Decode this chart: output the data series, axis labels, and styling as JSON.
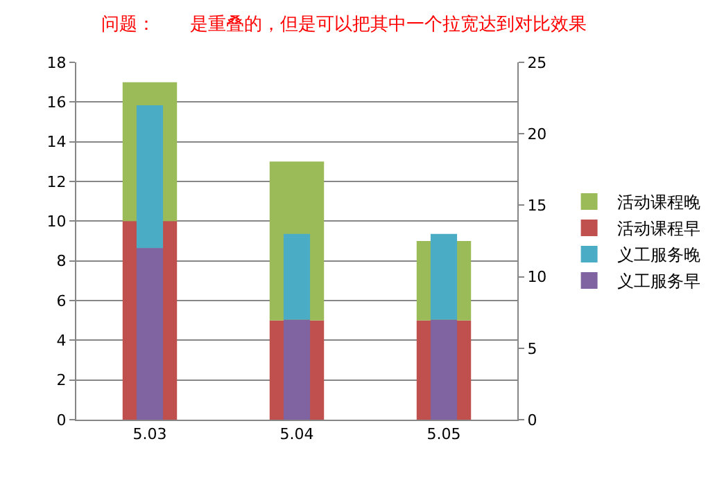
{
  "chart_data": {
    "type": "bar",
    "title": "问题：      是重叠的，但是可以把其中一个拉宽达到对比效果",
    "categories": [
      "5.03",
      "5.04",
      "5.05"
    ],
    "stacked": true,
    "series": [
      {
        "name": "活动课程早",
        "color": "#c0504d",
        "values": [
          10,
          5,
          5
        ]
      },
      {
        "name": "活动课程晚",
        "color": "#9bbb59",
        "values": [
          7,
          8,
          4
        ]
      },
      {
        "name": "义工服务早",
        "color": "#8064a2",
        "values": [
          12,
          7,
          7
        ],
        "axis": "y2"
      },
      {
        "name": "义工服务晚",
        "color": "#4bacc6",
        "values": [
          10,
          6,
          6
        ],
        "axis": "y2"
      }
    ],
    "ylim": [
      0,
      18
    ],
    "yticks": [
      0,
      2,
      4,
      6,
      8,
      10,
      12,
      14,
      16,
      18
    ],
    "y2lim": [
      0,
      25
    ],
    "y2ticks": [
      0,
      5,
      10,
      15,
      20,
      25
    ],
    "grid": "y",
    "legend": "right"
  }
}
